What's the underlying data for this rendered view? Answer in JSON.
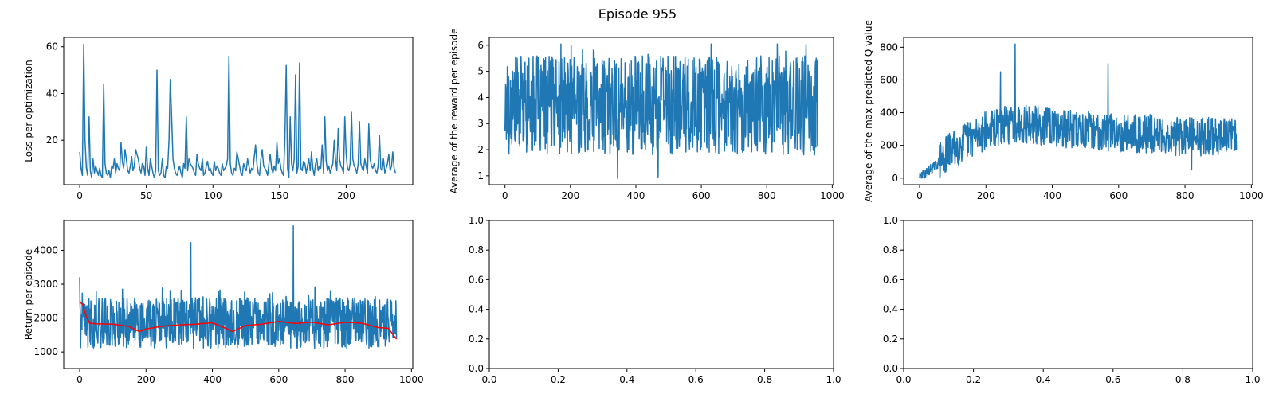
{
  "suptitle": "Episode 955",
  "chart_data": [
    {
      "type": "line",
      "xlabel": "",
      "ylabel": "Loss per optimization",
      "xlim": [
        -12,
        250
      ],
      "ylim": [
        1,
        64
      ],
      "xticks": [
        0,
        50,
        100,
        150,
        200
      ],
      "yticks": [
        20,
        40,
        60
      ],
      "series": [
        {
          "color": "#1f77b4",
          "x": [
            0,
            1,
            2,
            3,
            4,
            5,
            6,
            7,
            8,
            9,
            10,
            11,
            12,
            13,
            14,
            15,
            16,
            17,
            18,
            19,
            20,
            21,
            22,
            23,
            24,
            25,
            26,
            27,
            28,
            29,
            30,
            31,
            32,
            33,
            34,
            35,
            36,
            37,
            38,
            39,
            40,
            41,
            42,
            43,
            44,
            45,
            46,
            47,
            48,
            49,
            50,
            51,
            52,
            53,
            54,
            55,
            56,
            57,
            58,
            59,
            60,
            61,
            62,
            63,
            64,
            65,
            66,
            67,
            68,
            69,
            70,
            71,
            72,
            73,
            74,
            75,
            76,
            77,
            78,
            79,
            80,
            81,
            82,
            83,
            84,
            85,
            86,
            87,
            88,
            89,
            90,
            91,
            92,
            93,
            94,
            95,
            96,
            97,
            98,
            99,
            100,
            101,
            102,
            103,
            104,
            105,
            106,
            107,
            108,
            109,
            110,
            111,
            112,
            113,
            114,
            115,
            116,
            117,
            118,
            119,
            120,
            121,
            122,
            123,
            124,
            125,
            126,
            127,
            128,
            129,
            130,
            131,
            132,
            133,
            134,
            135,
            136,
            137,
            138,
            139,
            140,
            141,
            142,
            143,
            144,
            145,
            146,
            147,
            148,
            149,
            150,
            151,
            152,
            153,
            154,
            155,
            156,
            157,
            158,
            159,
            160,
            161,
            162,
            163,
            164,
            165,
            166,
            167,
            168,
            169,
            170,
            171,
            172,
            173,
            174,
            175,
            176,
            177,
            178,
            179,
            180,
            181,
            182,
            183,
            184,
            185,
            186,
            187,
            188,
            189,
            190,
            191,
            192,
            193,
            194,
            195,
            196,
            197,
            198,
            199,
            200,
            201,
            202,
            203,
            204,
            205,
            206,
            207,
            208,
            209,
            210,
            211,
            212,
            213,
            214,
            215,
            216,
            217,
            218,
            219,
            220,
            221,
            222,
            223,
            224,
            225,
            226,
            227,
            228,
            229,
            230,
            231,
            232,
            233,
            234,
            235,
            236,
            237
          ],
          "y": [
            15,
            8,
            5,
            61,
            20,
            8,
            5,
            30,
            7,
            4,
            12,
            6,
            9,
            7,
            5,
            8,
            5,
            4,
            44,
            10,
            6,
            5,
            7,
            4,
            9,
            8,
            12,
            6,
            10,
            8,
            7,
            19,
            11,
            8,
            16,
            12,
            7,
            6,
            9,
            13,
            7,
            9,
            16,
            14,
            12,
            8,
            6,
            10,
            9,
            5,
            17,
            8,
            5,
            12,
            9,
            6,
            4,
            7,
            50,
            7,
            5,
            6,
            12,
            5,
            4,
            9,
            8,
            20,
            46,
            30,
            12,
            8,
            6,
            5,
            7,
            9,
            6,
            4,
            10,
            8,
            30,
            7,
            12,
            10,
            9,
            8,
            6,
            5,
            14,
            10,
            8,
            7,
            12,
            5,
            6,
            9,
            11,
            7,
            8,
            6,
            5,
            11,
            7,
            9,
            8,
            6,
            5,
            10,
            7,
            8,
            9,
            12,
            56,
            10,
            6,
            5,
            8,
            7,
            15,
            12,
            9,
            6,
            5,
            10,
            8,
            7,
            12,
            9,
            6,
            8,
            7,
            13,
            18,
            10,
            6,
            5,
            12,
            16,
            9,
            8,
            7,
            5,
            10,
            14,
            8,
            6,
            9,
            7,
            19,
            10,
            12,
            8,
            6,
            5,
            20,
            52,
            8,
            4,
            30,
            10,
            7,
            12,
            48,
            6,
            9,
            53,
            8,
            7,
            11,
            10,
            6,
            9,
            12,
            7,
            15,
            8,
            5,
            10,
            12,
            7,
            9,
            8,
            18,
            6,
            30,
            11,
            7,
            9,
            6,
            8,
            10,
            20,
            12,
            7,
            25,
            12,
            9,
            8,
            6,
            30,
            14,
            8,
            7,
            10,
            32,
            12,
            9,
            8,
            6,
            10,
            28,
            10,
            8,
            7,
            12,
            9,
            6,
            27,
            12,
            9,
            8,
            10,
            7,
            6,
            9,
            22,
            8,
            7,
            12,
            6,
            8,
            10,
            14,
            7,
            9,
            15,
            8,
            6
          ]
        }
      ]
    },
    {
      "type": "line",
      "xlabel": "",
      "ylabel": "Average of the reward per episode",
      "xlim": [
        -48,
        1004
      ],
      "ylim": [
        0.66,
        6.3
      ],
      "xticks": [
        0,
        200,
        400,
        600,
        800,
        1000
      ],
      "yticks": [
        1,
        2,
        3,
        4,
        5,
        6
      ],
      "series": [
        {
          "color": "#1f77b4",
          "gen": {
            "n": 956,
            "seed": 17,
            "base": 3.7,
            "amp": 1.9,
            "min": 0.9,
            "max": 6.05,
            "peaks": [
              [
                630,
                6.05
              ],
              [
                344,
                0.9
              ],
              [
                468,
                0.95
              ]
            ]
          }
        }
      ]
    },
    {
      "type": "line",
      "xlabel": "",
      "ylabel": "Average of the max predicted Q value",
      "xlim": [
        -48,
        1004
      ],
      "ylim": [
        -40,
        860
      ],
      "xticks": [
        0,
        200,
        400,
        600,
        800,
        1000
      ],
      "yticks": [
        0,
        200,
        400,
        600,
        800
      ],
      "series": [
        {
          "color": "#1f77b4",
          "trend": [
            [
              0,
              5
            ],
            [
              50,
              80
            ],
            [
              100,
              180
            ],
            [
              150,
              240
            ],
            [
              200,
              290
            ],
            [
              250,
              320
            ],
            [
              300,
              340
            ],
            [
              400,
              310
            ],
            [
              500,
              290
            ],
            [
              600,
              280
            ],
            [
              700,
              270
            ],
            [
              800,
              250
            ],
            [
              955,
              260
            ]
          ],
          "gen": {
            "n": 956,
            "seed": 29,
            "spread": 120,
            "min": 0,
            "max": 820,
            "peaks": [
              [
                288,
                820
              ],
              [
                244,
                650
              ],
              [
                568,
                700
              ],
              [
                820,
                50
              ]
            ]
          }
        }
      ]
    },
    {
      "type": "line",
      "xlabel": "",
      "ylabel": "Return per episode",
      "xlim": [
        -48,
        1004
      ],
      "ylim": [
        510,
        4880
      ],
      "xticks": [
        0,
        200,
        400,
        600,
        800,
        1000
      ],
      "yticks": [
        1000,
        2000,
        3000,
        4000
      ],
      "series": [
        {
          "color": "#1f77b4",
          "gen": {
            "n": 956,
            "seed": 41,
            "base": 1850,
            "amp": 750,
            "min": 650,
            "max": 4720,
            "peaks": [
              [
                644,
                4720
              ],
              [
                335,
                4230
              ],
              [
                0,
                3200
              ]
            ]
          }
        },
        {
          "color": "#ff0000",
          "x": [
            0,
            10,
            20,
            30,
            50,
            100,
            150,
            180,
            200,
            250,
            300,
            350,
            400,
            450,
            460,
            500,
            550,
            600,
            650,
            700,
            750,
            800,
            850,
            900,
            930,
            955
          ],
          "y": [
            2500,
            2380,
            2050,
            1850,
            1830,
            1820,
            1750,
            1600,
            1680,
            1760,
            1800,
            1820,
            1860,
            1660,
            1600,
            1780,
            1820,
            1900,
            1840,
            1880,
            1800,
            1880,
            1850,
            1720,
            1700,
            1380
          ]
        }
      ]
    },
    {
      "type": "line",
      "xlabel": "",
      "ylabel": "",
      "xlim": [
        0,
        1
      ],
      "ylim": [
        0,
        1
      ],
      "xticks": [
        "0.0",
        "0.2",
        "0.4",
        "0.6",
        "0.8",
        "1.0"
      ],
      "yticks": [
        "0.0",
        "0.2",
        "0.4",
        "0.6",
        "0.8",
        "1.0"
      ],
      "series": []
    },
    {
      "type": "line",
      "xlabel": "",
      "ylabel": "",
      "xlim": [
        0,
        1
      ],
      "ylim": [
        0,
        1
      ],
      "xticks": [
        "0.0",
        "0.2",
        "0.4",
        "0.6",
        "0.8",
        "1.0"
      ],
      "yticks": [
        "0.0",
        "0.2",
        "0.4",
        "0.6",
        "0.8",
        "1.0"
      ],
      "series": []
    }
  ]
}
